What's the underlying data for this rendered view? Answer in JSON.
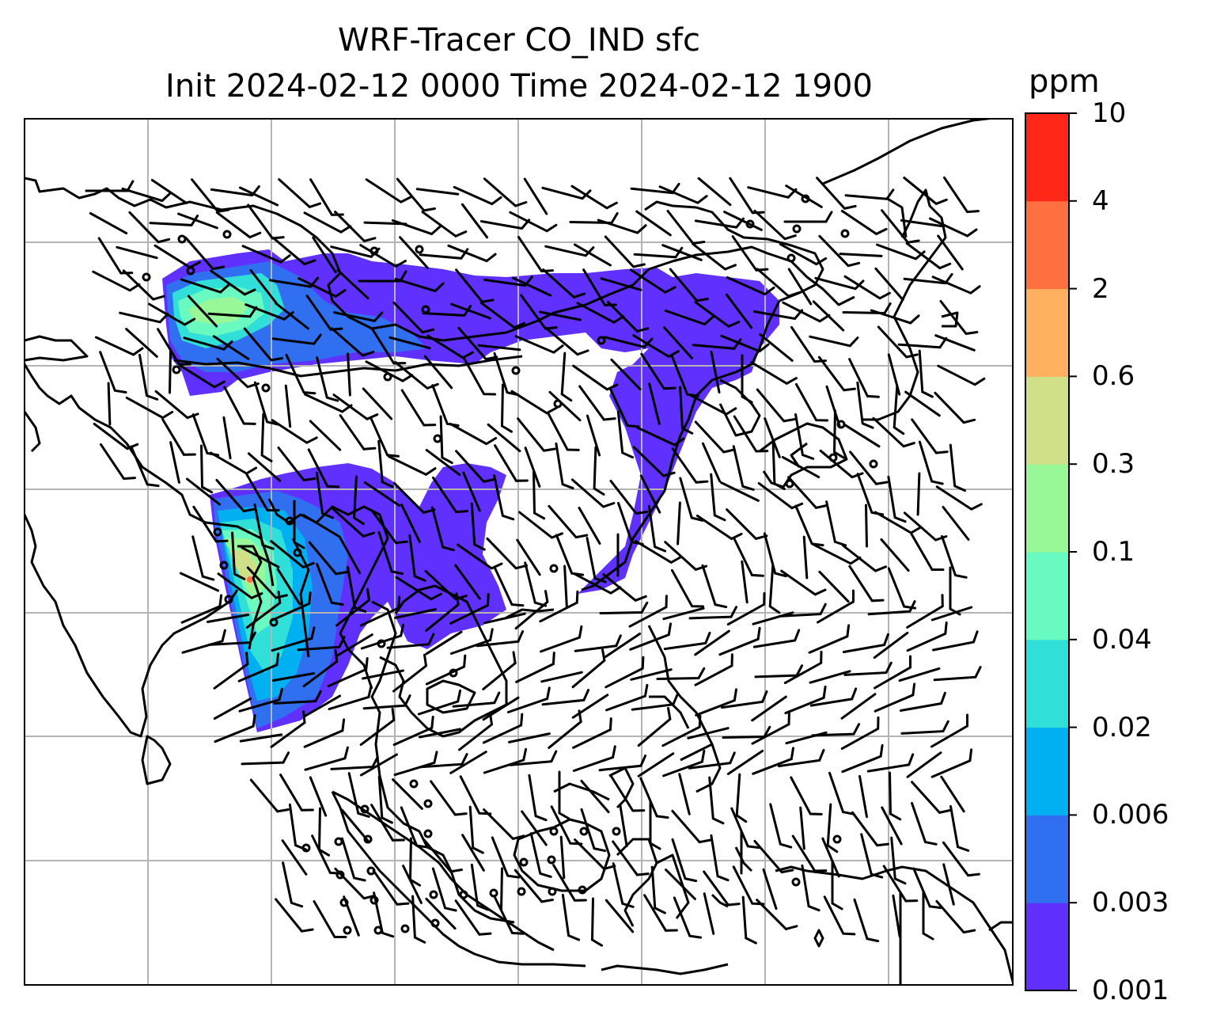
{
  "title": "WRF-Tracer CO_IND sfc",
  "subtitle": "Init 2024-02-12 0000 Time 2024-02-12 1900",
  "colorbar": {
    "unit": "ppm",
    "levels": [
      "0.001",
      "0.003",
      "0.006",
      "0.02",
      "0.04",
      "0.1",
      "0.3",
      "0.6",
      "2",
      "4",
      "10"
    ],
    "colors": [
      "#6030ff",
      "#3070f0",
      "#00b0f0",
      "#30e0d8",
      "#68fac0",
      "#98f898",
      "#d0e088",
      "#ffb060",
      "#ff7040",
      "#ff2818"
    ]
  },
  "colors": {
    "frame": "#000000",
    "grid": "#b4b4b4",
    "coast": "#000000",
    "barb": "#000000"
  }
}
